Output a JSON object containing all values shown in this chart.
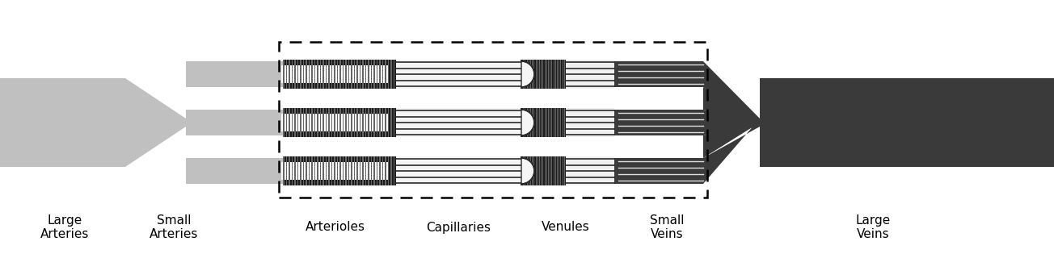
{
  "bg_color": "#ffffff",
  "artery_color": "#c0c0c0",
  "artery_edge": "#888888",
  "vein_color": "#3a3a3a",
  "vein_edge": "#1a1a1a",
  "arteriole_dark": "#1c1c1c",
  "arteriole_light": "#666666",
  "cap_bg": "#f0f0f0",
  "cap_line": "#222222",
  "venule_dark": "#1c1c1c",
  "venule_light": "#666666",
  "labels": {
    "large_arteries": "Large\nArteries",
    "small_arteries": "Small\nArteries",
    "arterioles": "Arterioles",
    "capillaries": "Capillaries",
    "venules": "Venules",
    "small_veins": "Small\nVeins",
    "large_veins": "Large\nVeins"
  },
  "figsize": [
    13.04,
    3.2
  ],
  "dpi": 100
}
